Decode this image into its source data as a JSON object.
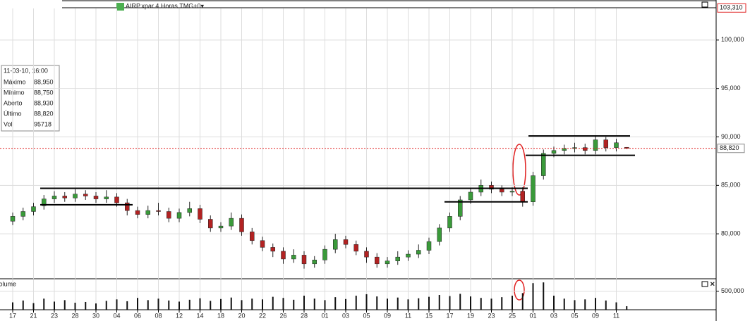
{
  "chart_data": {
    "type": "candlestick",
    "title": "AIRP.xpar 4 Horas TMG+0▾",
    "volume_title": "Volume",
    "categories": [
      "17",
      null,
      "21",
      null,
      "23",
      null,
      "28",
      null,
      "30",
      null,
      "04",
      null,
      "06",
      null,
      "08",
      null,
      "12",
      null,
      "14",
      null,
      "18",
      null,
      "20",
      null,
      "22",
      null,
      "26",
      null,
      "28",
      null,
      "01",
      null,
      "03",
      null,
      "05",
      null,
      "09",
      null,
      "11",
      null,
      "15",
      null,
      "17",
      null,
      "19",
      null,
      "23",
      null,
      "25",
      null,
      "01",
      null,
      "03",
      null,
      "05",
      null,
      "09",
      null,
      "11",
      null
    ],
    "open": [
      81.3,
      81.8,
      82.3,
      82.9,
      83.6,
      83.9,
      83.7,
      84.1,
      83.9,
      83.6,
      83.8,
      83.2,
      82.4,
      82.0,
      82.4,
      82.3,
      81.6,
      82.2,
      82.6,
      81.5,
      80.6,
      80.8,
      81.6,
      80.2,
      79.3,
      78.6,
      78.2,
      77.4,
      77.8,
      76.9,
      77.3,
      78.4,
      79.4,
      78.9,
      78.2,
      77.6,
      76.9,
      77.2,
      77.6,
      77.9,
      78.3,
      79.2,
      80.6,
      81.8,
      83.5,
      84.3,
      85.0,
      84.6,
      84.3,
      84.4,
      83.3,
      86.0,
      88.3,
      88.6,
      88.8,
      88.9,
      88.6,
      89.7,
      88.9,
      88.93
    ],
    "high": [
      82.2,
      82.7,
      83.2,
      84.0,
      84.4,
      84.3,
      84.6,
      84.5,
      84.3,
      84.5,
      84.2,
      83.6,
      82.8,
      82.9,
      83.2,
      82.7,
      82.6,
      83.3,
      83.0,
      81.9,
      81.2,
      82.2,
      82.0,
      80.6,
      79.7,
      79.0,
      78.6,
      78.4,
      78.2,
      77.7,
      78.8,
      80.0,
      79.8,
      79.3,
      78.6,
      78.0,
      77.6,
      78.2,
      78.3,
      78.9,
      79.6,
      81.0,
      82.2,
      83.9,
      84.7,
      85.6,
      85.4,
      85.0,
      84.8,
      84.8,
      86.4,
      88.7,
      89.0,
      89.2,
      89.4,
      89.3,
      90.1,
      90.0,
      89.8,
      88.95
    ],
    "low": [
      80.9,
      81.4,
      81.9,
      82.5,
      83.2,
      83.3,
      83.3,
      83.5,
      83.2,
      83.2,
      82.8,
      81.9,
      81.6,
      81.6,
      81.9,
      81.2,
      81.2,
      81.8,
      81.1,
      80.2,
      80.2,
      80.4,
      79.8,
      78.9,
      78.2,
      77.6,
      76.9,
      77.0,
      76.4,
      76.5,
      76.9,
      78.0,
      78.5,
      77.8,
      77.0,
      76.5,
      76.5,
      76.8,
      77.2,
      77.5,
      77.9,
      78.8,
      80.2,
      81.4,
      83.1,
      83.9,
      84.2,
      83.9,
      83.9,
      82.8,
      82.9,
      85.6,
      87.9,
      88.2,
      88.4,
      88.2,
      88.2,
      88.5,
      88.5,
      88.75
    ],
    "close": [
      81.8,
      82.3,
      82.8,
      83.6,
      83.9,
      83.7,
      84.1,
      83.9,
      83.6,
      83.8,
      83.2,
      82.4,
      82.0,
      82.4,
      82.3,
      81.6,
      82.2,
      82.6,
      81.5,
      80.6,
      80.8,
      81.6,
      80.2,
      79.3,
      78.6,
      78.2,
      77.4,
      77.8,
      76.9,
      77.3,
      78.4,
      79.4,
      78.9,
      78.2,
      77.6,
      76.9,
      77.2,
      77.6,
      77.9,
      78.3,
      79.2,
      80.6,
      81.8,
      83.5,
      84.3,
      85.0,
      84.6,
      84.3,
      84.4,
      83.3,
      86.0,
      88.3,
      88.6,
      88.8,
      88.9,
      88.6,
      89.7,
      88.9,
      89.4,
      88.82
    ],
    "volume": [
      200000,
      250000,
      180000,
      300000,
      220000,
      260000,
      190000,
      210000,
      170000,
      240000,
      280000,
      230000,
      320000,
      260000,
      300000,
      250000,
      220000,
      270000,
      310000,
      240000,
      290000,
      330000,
      260000,
      300000,
      280000,
      350000,
      320000,
      270000,
      380000,
      300000,
      260000,
      340000,
      290000,
      380000,
      420000,
      360000,
      300000,
      330000,
      280000,
      310000,
      350000,
      400000,
      370000,
      430000,
      360000,
      320000,
      300000,
      340000,
      380000,
      450000,
      720000,
      740000,
      380000,
      300000,
      260000,
      280000,
      320000,
      250000,
      200000,
      95718
    ],
    "up_color": "#3a9a3a",
    "down_color": "#b22222",
    "volume_color": "#111111",
    "ylim": [
      75.36,
      103.26
    ],
    "yticks": [
      {
        "value": 80,
        "label": "80,000"
      },
      {
        "value": 85,
        "label": "85,000"
      },
      {
        "value": 90,
        "label": "90,000"
      },
      {
        "value": 95,
        "label": "95,000"
      },
      {
        "value": 100,
        "label": "100,000"
      }
    ],
    "vol_ylim": [
      0,
      800000
    ],
    "vol_yticks": [
      {
        "value": 500000,
        "label": "500,000"
      }
    ],
    "last_price": {
      "value": 88.82,
      "label": "88,820"
    },
    "top_price": {
      "value": 103.31,
      "label": "103,310"
    },
    "levels": [
      84.7,
      83.0,
      83.3,
      90.1,
      88.1
    ],
    "grid": true
  },
  "info_box": {
    "date": "11-03-10, 16:00",
    "rows": [
      [
        "Máximo",
        "88,950"
      ],
      [
        "Mínimo",
        "88,750"
      ],
      [
        "Aberto",
        "88,930"
      ],
      [
        "Último",
        "88,820"
      ],
      [
        "Vol",
        "95718"
      ]
    ]
  }
}
